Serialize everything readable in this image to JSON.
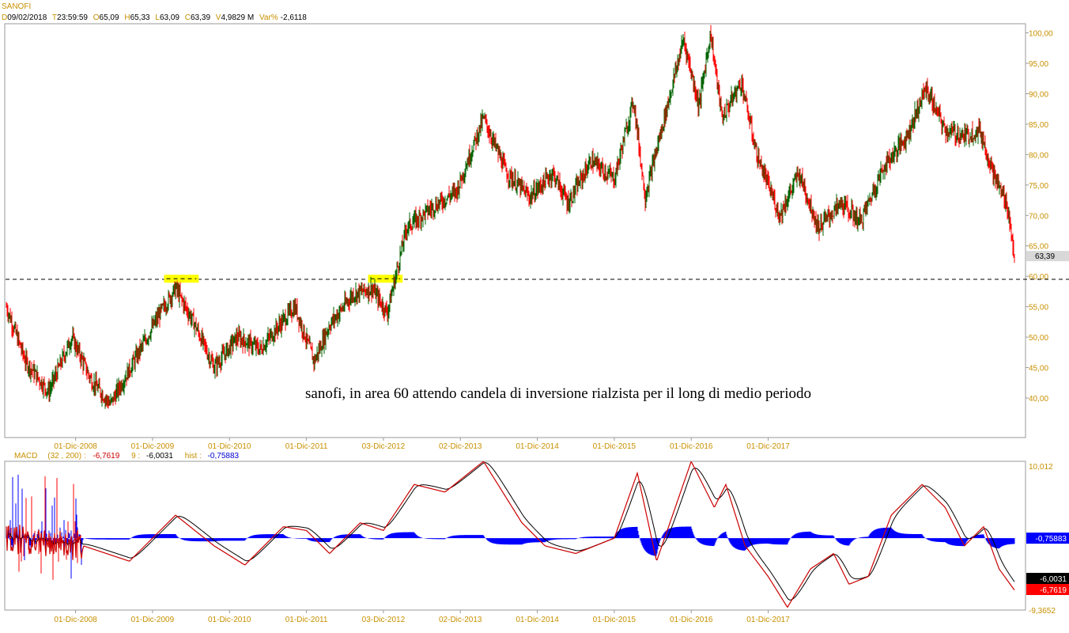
{
  "header": {
    "symbol": "SANOFI",
    "d_label": "D",
    "date": "09/02/2018",
    "t_label": "T",
    "time": "23:59:59",
    "o_label": "O",
    "open": "65,09",
    "h_label": "H",
    "high": "65,33",
    "l_label": "L",
    "low": "63,09",
    "c_label": "C",
    "close": "63,39",
    "v_label": "V",
    "volume": "4,9829 M",
    "var_label": "Var%",
    "var": "-2,6118"
  },
  "macd_header": {
    "name": "MACD",
    "params": "(32 , 200) :",
    "macd_value": "-6,7619",
    "signal_period": "9 :",
    "signal_value": "-6,0031",
    "hist_label": "hist :",
    "hist_value": "-0,75883"
  },
  "annotation": "sanofi, in area 60 attendo candela di inversione rialzista per il long di medio periodo",
  "colors": {
    "up": "#006400",
    "down": "#ff0000",
    "axis": "#c89000",
    "macd": "#cc0000",
    "signal": "#000000",
    "hist": "#0000ff",
    "highlight": "#ffff00"
  },
  "chart_data": [
    {
      "type": "candlestick",
      "title": "SANOFI",
      "x_ticks": [
        "01-Dic-2008",
        "01-Dic-2009",
        "01-Dic-2010",
        "01-Dic-2011",
        "03-Dic-2012",
        "02-Dic-2013",
        "01-Dic-2014",
        "01-Dic-2015",
        "01-Dic-2016",
        "01-Dic-2017"
      ],
      "y_ticks": [
        "40,00",
        "45,00",
        "50,00",
        "55,00",
        "60,00",
        "65,00",
        "70,00",
        "75,00",
        "80,00",
        "85,00",
        "90,00",
        "95,00",
        "100,00"
      ],
      "ylim": [
        33.5,
        101.5
      ],
      "last_price_label": "63,39",
      "support_level": 59.5,
      "price_path": [
        {
          "x": 2008.0,
          "y": 55
        },
        {
          "x": 2008.25,
          "y": 46
        },
        {
          "x": 2008.55,
          "y": 41
        },
        {
          "x": 2008.85,
          "y": 50
        },
        {
          "x": 2009.1,
          "y": 43
        },
        {
          "x": 2009.35,
          "y": 39
        },
        {
          "x": 2009.7,
          "y": 47
        },
        {
          "x": 2010.0,
          "y": 54
        },
        {
          "x": 2010.2,
          "y": 58
        },
        {
          "x": 2010.45,
          "y": 52
        },
        {
          "x": 2010.7,
          "y": 45
        },
        {
          "x": 2011.0,
          "y": 50
        },
        {
          "x": 2011.3,
          "y": 48
        },
        {
          "x": 2011.55,
          "y": 52
        },
        {
          "x": 2011.75,
          "y": 55
        },
        {
          "x": 2012.0,
          "y": 46
        },
        {
          "x": 2012.2,
          "y": 52
        },
        {
          "x": 2012.5,
          "y": 57
        },
        {
          "x": 2012.75,
          "y": 58
        },
        {
          "x": 2012.95,
          "y": 54
        },
        {
          "x": 2013.2,
          "y": 68
        },
        {
          "x": 2013.5,
          "y": 71
        },
        {
          "x": 2013.85,
          "y": 74
        },
        {
          "x": 2014.2,
          "y": 86
        },
        {
          "x": 2014.5,
          "y": 77
        },
        {
          "x": 2014.8,
          "y": 73
        },
        {
          "x": 2015.1,
          "y": 77
        },
        {
          "x": 2015.3,
          "y": 72
        },
        {
          "x": 2015.6,
          "y": 79
        },
        {
          "x": 2015.9,
          "y": 76
        },
        {
          "x": 2016.15,
          "y": 89
        },
        {
          "x": 2016.3,
          "y": 73
        },
        {
          "x": 2016.55,
          "y": 86
        },
        {
          "x": 2016.8,
          "y": 99
        },
        {
          "x": 2017.0,
          "y": 88
        },
        {
          "x": 2017.15,
          "y": 100
        },
        {
          "x": 2017.3,
          "y": 86
        },
        {
          "x": 2017.55,
          "y": 92
        },
        {
          "x": 2017.75,
          "y": 80
        },
        {
          "x": 2018.05,
          "y": 70
        },
        {
          "x": 2018.3,
          "y": 77
        },
        {
          "x": 2018.55,
          "y": 68
        },
        {
          "x": 2018.85,
          "y": 72
        },
        {
          "x": 2019.1,
          "y": 69
        },
        {
          "x": 2019.4,
          "y": 78
        },
        {
          "x": 2019.7,
          "y": 83
        },
        {
          "x": 2019.95,
          "y": 91
        },
        {
          "x": 2020.2,
          "y": 84
        },
        {
          "x": 2020.45,
          "y": 83
        },
        {
          "x": 2020.65,
          "y": 84
        },
        {
          "x": 2020.85,
          "y": 76
        },
        {
          "x": 2021.0,
          "y": 72
        },
        {
          "x": 2021.1,
          "y": 63.4
        }
      ],
      "highlights": [
        {
          "x_start": 2010.05,
          "x_end": 2010.5,
          "y": 59.6
        },
        {
          "x_start": 2012.7,
          "x_end": 2013.15,
          "y": 59.6
        }
      ]
    },
    {
      "type": "line",
      "title": "MACD",
      "y_ticks": [
        "10,012",
        "-9,3652"
      ],
      "ylim": [
        -9.3652,
        10.012
      ],
      "series": [
        {
          "name": "MACD",
          "values_path": [
            {
              "x": 2008.0,
              "y": 0
            },
            {
              "x": 2009.0,
              "y": -1
            },
            {
              "x": 2009.6,
              "y": -3
            },
            {
              "x": 2010.2,
              "y": 3
            },
            {
              "x": 2010.7,
              "y": -1
            },
            {
              "x": 2011.1,
              "y": -3.5
            },
            {
              "x": 2011.6,
              "y": 1.5
            },
            {
              "x": 2011.9,
              "y": 1
            },
            {
              "x": 2012.2,
              "y": -2
            },
            {
              "x": 2012.6,
              "y": 2
            },
            {
              "x": 2012.9,
              "y": 1
            },
            {
              "x": 2013.3,
              "y": 7
            },
            {
              "x": 2013.7,
              "y": 6
            },
            {
              "x": 2014.2,
              "y": 10
            },
            {
              "x": 2014.7,
              "y": 2
            },
            {
              "x": 2015.0,
              "y": -1
            },
            {
              "x": 2015.4,
              "y": -2
            },
            {
              "x": 2015.9,
              "y": 0
            },
            {
              "x": 2016.2,
              "y": 8.5
            },
            {
              "x": 2016.45,
              "y": -3
            },
            {
              "x": 2016.9,
              "y": 10
            },
            {
              "x": 2017.2,
              "y": 4
            },
            {
              "x": 2017.35,
              "y": 7
            },
            {
              "x": 2017.6,
              "y": -1
            },
            {
              "x": 2017.9,
              "y": -5
            },
            {
              "x": 2018.15,
              "y": -9
            },
            {
              "x": 2018.45,
              "y": -4
            },
            {
              "x": 2018.75,
              "y": -2
            },
            {
              "x": 2018.95,
              "y": -6
            },
            {
              "x": 2019.2,
              "y": -5
            },
            {
              "x": 2019.5,
              "y": 3
            },
            {
              "x": 2019.9,
              "y": 7
            },
            {
              "x": 2020.2,
              "y": 4
            },
            {
              "x": 2020.45,
              "y": -1
            },
            {
              "x": 2020.7,
              "y": 1.5
            },
            {
              "x": 2020.9,
              "y": -4
            },
            {
              "x": 2021.1,
              "y": -6.7619
            }
          ]
        },
        {
          "name": "signal",
          "value": -6.0031
        },
        {
          "name": "hist",
          "value": -0.75883
        }
      ]
    }
  ]
}
